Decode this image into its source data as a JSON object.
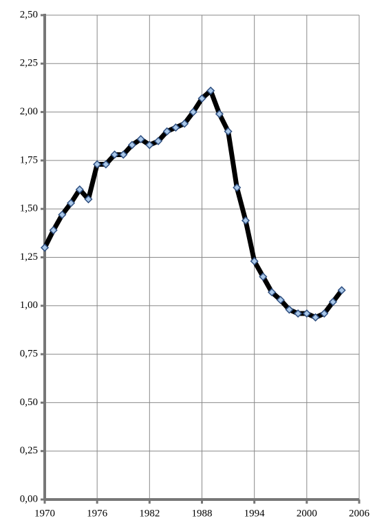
{
  "chart_data": {
    "type": "line",
    "x": [
      1970,
      1971,
      1972,
      1973,
      1974,
      1975,
      1976,
      1977,
      1978,
      1979,
      1980,
      1981,
      1982,
      1983,
      1984,
      1985,
      1986,
      1987,
      1988,
      1989,
      1990,
      1991,
      1992,
      1993,
      1994,
      1995,
      1996,
      1997,
      1998,
      1999,
      2000,
      2001,
      2002,
      2003,
      2004
    ],
    "series": [
      {
        "color": "#000000",
        "values": [
          1.3,
          1.39,
          1.47,
          1.53,
          1.6,
          1.55,
          1.73,
          1.73,
          1.78,
          1.78,
          1.83,
          1.86,
          1.83,
          1.85,
          1.9,
          1.92,
          1.94,
          2.0,
          2.07,
          2.11,
          1.99,
          1.9,
          1.61,
          1.44,
          1.23,
          1.15,
          1.07,
          1.03,
          0.98,
          0.96,
          0.96,
          0.94,
          0.96,
          1.02,
          1.08
        ]
      }
    ],
    "xlim": [
      1970,
      2006
    ],
    "xticks": [
      1970,
      1976,
      1982,
      1988,
      1994,
      2000,
      2006
    ],
    "ylim": [
      0,
      2.5
    ],
    "yticks": [
      {
        "value": 0,
        "label": "0,00"
      },
      {
        "value": 0.25,
        "label": "0,25"
      },
      {
        "value": 0.5,
        "label": "0,50"
      },
      {
        "value": 0.75,
        "label": "0,75"
      },
      {
        "value": 1,
        "label": "1,00"
      },
      {
        "value": 1.25,
        "label": "1,25"
      },
      {
        "value": 1.5,
        "label": "1,50"
      },
      {
        "value": 1.75,
        "label": "1,75"
      },
      {
        "value": 2,
        "label": "2,00"
      },
      {
        "value": 2.25,
        "label": "2,25"
      },
      {
        "value": 2.5,
        "label": "2,50"
      }
    ],
    "grid": true,
    "marker_color": "#a9c7e8"
  }
}
